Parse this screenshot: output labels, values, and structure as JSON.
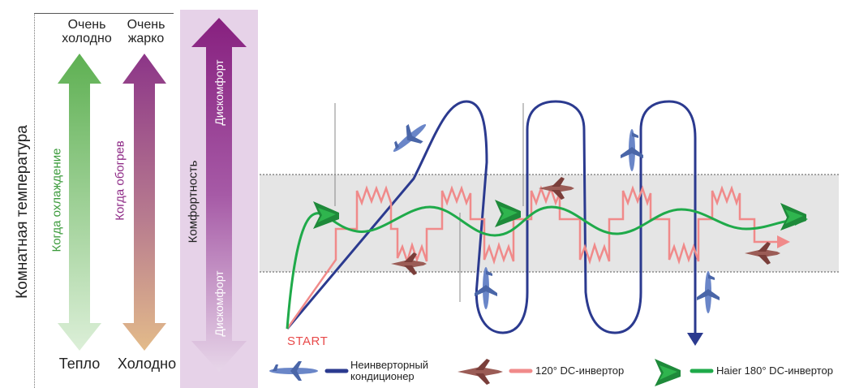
{
  "axis_label": "Комнатная температура",
  "cooling_column": {
    "top_label_line1": "Очень",
    "top_label_line2": "холодно",
    "arrow_label": "Когда охлаждение",
    "bottom_label": "Тепло",
    "color": "#6db765"
  },
  "heating_column": {
    "top_label_line1": "Очень",
    "top_label_line2": "жарко",
    "arrow_label": "Когда обогрев",
    "bottom_label": "Холодно",
    "color": "#9b3f8f"
  },
  "comfort_column": {
    "label": "Комфортность",
    "top_label": "Дискомфорт",
    "bottom_label": "Дискомфорт",
    "color": "#8e2a86"
  },
  "start_label": "START",
  "start_color": "#e84a4a",
  "legend": [
    {
      "icon": "airliner-icon",
      "line_color": "#2b3a8f",
      "label_line1": "Неинверторный",
      "label_line2": "кондиционер"
    },
    {
      "icon": "fighter-jet-icon",
      "line_color": "#f08a8a",
      "label_line1": "120°  DC-инвертор",
      "label_line2": ""
    },
    {
      "icon": "stealth-bomber-icon",
      "line_color": "#1faa4a",
      "label_line1": "Haier 180° DC-инвертор",
      "label_line2": ""
    }
  ]
}
